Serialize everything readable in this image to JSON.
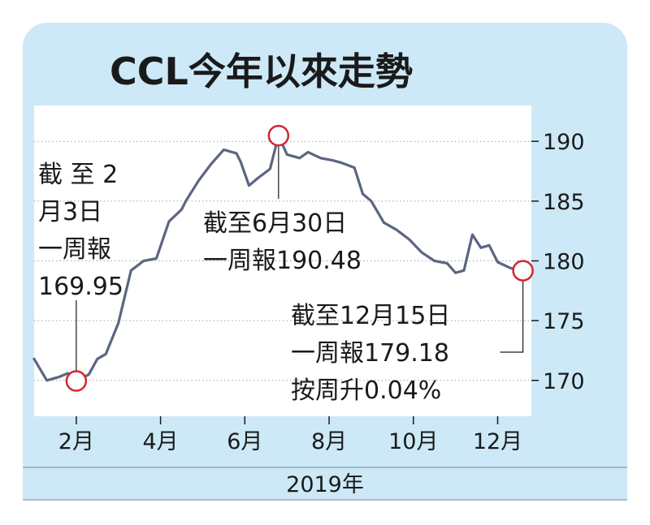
{
  "chart_data": {
    "type": "line",
    "title": "CCL今年以來走勢",
    "xlabel": "2019年",
    "x_ticks": [
      "2月",
      "4月",
      "6月",
      "8月",
      "10月",
      "12月"
    ],
    "y_ticks": [
      "170",
      "175",
      "180",
      "185",
      "190"
    ],
    "ylim": [
      167,
      193
    ],
    "xlim": [
      1,
      12.8
    ],
    "grid": true,
    "series": [
      {
        "x": [
          1.0,
          1.3,
          1.6,
          1.8,
          2.0,
          2.3,
          2.5,
          2.7,
          3.0,
          3.3,
          3.6,
          3.9,
          4.2,
          4.5,
          4.6,
          4.9,
          5.2,
          5.5,
          5.8,
          5.9,
          6.1,
          6.3,
          6.6,
          6.8,
          7.0,
          7.3,
          7.5,
          7.8,
          8.1,
          8.3,
          8.6,
          8.8,
          9.0,
          9.3,
          9.6,
          9.9,
          10.2,
          10.5,
          10.8,
          11.0,
          11.2,
          11.4,
          11.6,
          11.8,
          12.0,
          12.3,
          12.6
        ],
        "values": [
          171.8,
          170.0,
          170.3,
          170.6,
          169.95,
          170.5,
          171.8,
          172.2,
          174.8,
          179.2,
          180.0,
          180.2,
          183.3,
          184.3,
          185.0,
          186.7,
          188.1,
          189.3,
          189.0,
          188.3,
          186.3,
          186.9,
          187.7,
          190.48,
          188.9,
          188.6,
          189.1,
          188.6,
          188.4,
          188.2,
          187.8,
          185.6,
          185.0,
          183.2,
          182.6,
          181.8,
          180.7,
          180.0,
          179.8,
          179.0,
          179.2,
          182.2,
          181.1,
          181.3,
          179.9,
          179.4,
          179.18
        ]
      }
    ],
    "annotations": [
      {
        "lines": [
          "截 至 2",
          "月3日",
          "一周報",
          "169.95"
        ],
        "x": 2.0,
        "y": 169.95
      },
      {
        "lines": [
          "截至6月30日",
          "一周報190.48"
        ],
        "x": 6.8,
        "y": 190.48
      },
      {
        "lines": [
          "截至12月15日",
          "一周報179.18",
          "按周升0.04%"
        ],
        "x": 12.6,
        "y": 179.18
      }
    ],
    "colors": {
      "background": "#cde9f7",
      "line": "#5b6680",
      "marker": "#d22630",
      "text": "#1a1a1a",
      "plot": "#ffffff"
    }
  }
}
